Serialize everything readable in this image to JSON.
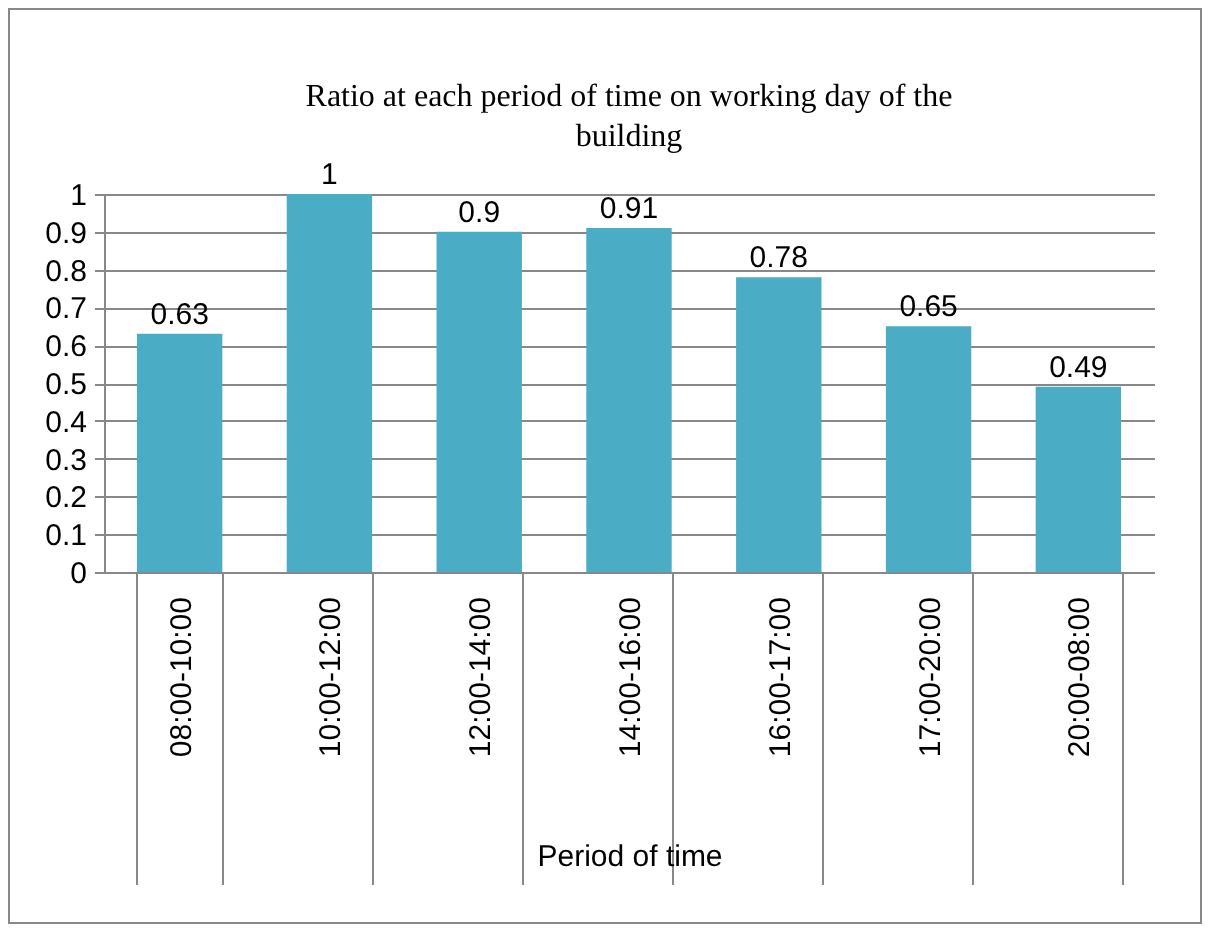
{
  "chart_data": {
    "type": "bar",
    "title": "Ratio at each period of time on working day of the building",
    "xlabel": "Period of time",
    "categories": [
      "08:00-10:00",
      "10:00-12:00",
      "12:00-14:00",
      "14:00-16:00",
      "16:00-17:00",
      "17:00-20:00",
      "20:00-08:00"
    ],
    "values": [
      0.63,
      1,
      0.9,
      0.91,
      0.78,
      0.65,
      0.49
    ],
    "color": "#4bacc6",
    "ylim": [
      0,
      1
    ],
    "yticks": [
      0,
      0.1,
      0.2,
      0.3,
      0.4,
      0.5,
      0.6,
      0.7,
      0.8,
      0.9,
      1
    ],
    "grid": "y",
    "data_labels": true
  }
}
